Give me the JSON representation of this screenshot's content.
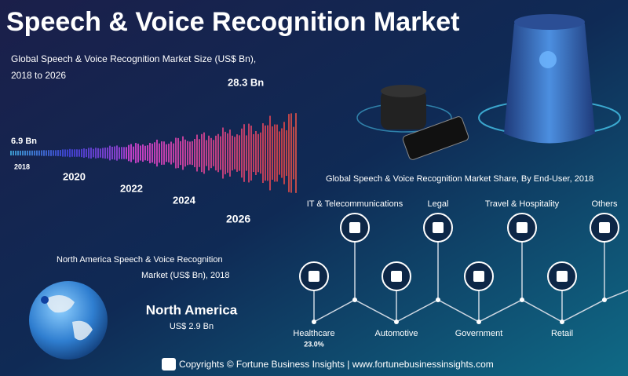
{
  "header": {
    "title": "Speech & Voice Recognition Market"
  },
  "market_size": {
    "subtitle_line1": "Global Speech & Voice Recognition Market Size (US$ Bn),",
    "subtitle_line2": "2018 to 2026",
    "end_value": "28.3 Bn",
    "start_value": "6.9 Bn",
    "years": [
      "2018",
      "2020",
      "2022",
      "2024",
      "2026"
    ]
  },
  "share": {
    "title": "Global Speech & Voice Recognition Market Share, By End-User, 2018",
    "top": [
      "IT & Telecommunications",
      "Legal",
      "Travel & Hospitality",
      "Others"
    ],
    "bottom": [
      "Healthcare",
      "Automotive",
      "Government",
      "Retail"
    ],
    "healthcare_share": "23.0%"
  },
  "region": {
    "title_line1": "North America Speech & Voice Recognition",
    "title_line2": "Market (US$ Bn), 2018",
    "name": "North America",
    "value": "US$ 2.9 Bn"
  },
  "footer": {
    "text": "Copyrights © Fortune Business Insights | www.fortunebusinessinsights.com"
  }
}
